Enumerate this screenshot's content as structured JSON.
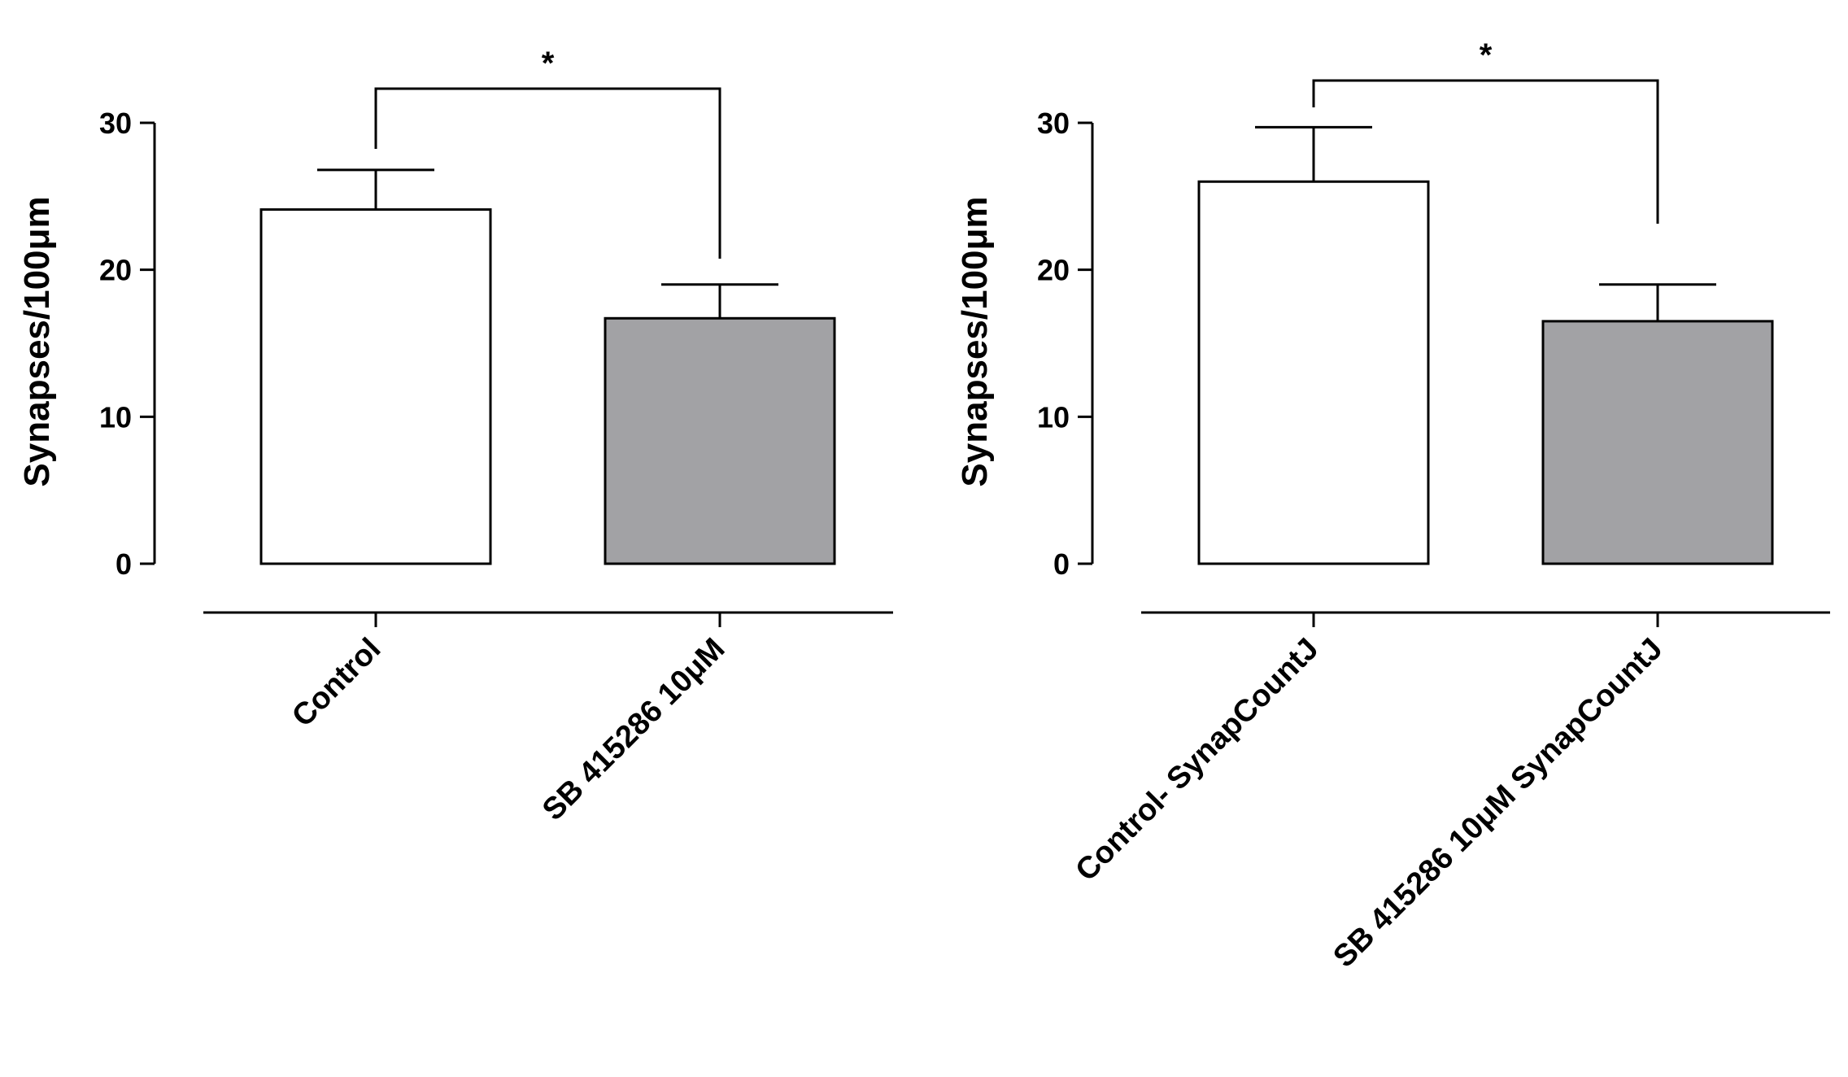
{
  "chart_data": [
    {
      "type": "bar",
      "categories": [
        "Control",
        "SB 415286 10μM"
      ],
      "values": [
        24.1,
        16.7
      ],
      "errors": [
        2.7,
        2.3
      ],
      "bar_colors": [
        "#ffffff",
        "#a2a2a5"
      ],
      "ylabel": "Synapses/100μm",
      "ylim": [
        0,
        30
      ],
      "yticks": [
        "0",
        "10",
        "20",
        "30"
      ],
      "significance": {
        "label": "*",
        "between": [
          0,
          1
        ]
      },
      "grid": false
    },
    {
      "type": "bar",
      "categories": [
        "Control- SynapCountJ",
        "SB 415286 10μM SynapCountJ"
      ],
      "values": [
        26.0,
        16.5
      ],
      "errors": [
        3.7,
        2.5
      ],
      "bar_colors": [
        "#ffffff",
        "#a2a2a5"
      ],
      "ylabel": "Synapses/100μm",
      "ylim": [
        0,
        30
      ],
      "yticks": [
        "0",
        "10",
        "20",
        "30"
      ],
      "significance": {
        "label": "*",
        "between": [
          0,
          1
        ]
      },
      "grid": false
    }
  ]
}
